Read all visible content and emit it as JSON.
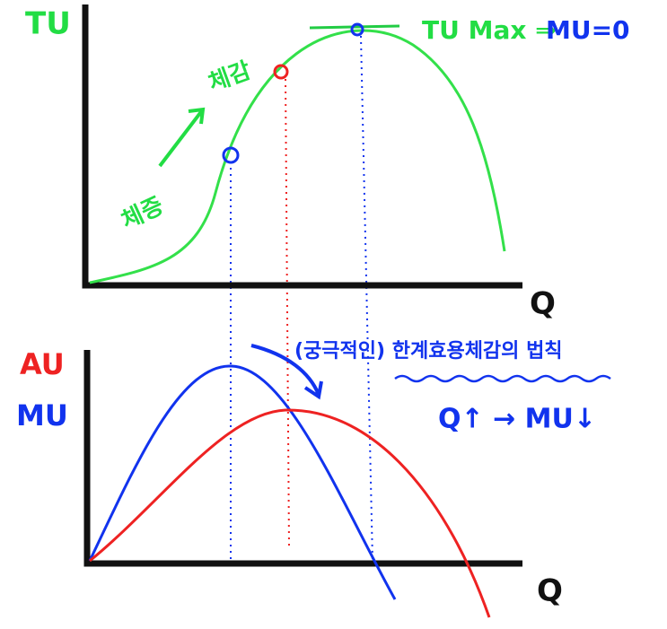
{
  "top_chart": {
    "y_label": "TU",
    "x_label": "Q",
    "increasing": "체증",
    "decreasing": "체감",
    "max_note": "TU Max ⇒",
    "max_condition": "MU=0"
  },
  "bottom_chart": {
    "y_label_au": "AU",
    "y_label_mu": "MU",
    "x_label": "Q",
    "law": "(궁극적인) 한계효용체감의 법칙",
    "rule": "Q↑ → MU↓"
  }
}
